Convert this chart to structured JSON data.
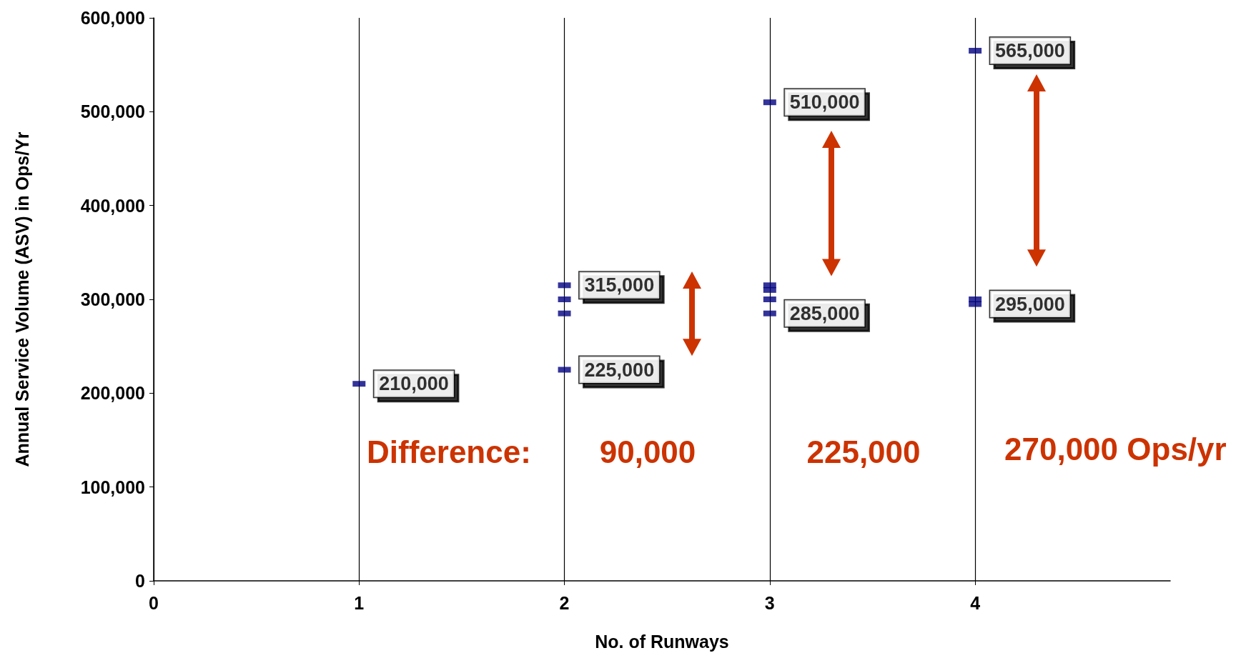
{
  "chart_data": {
    "type": "scatter",
    "xlabel": "No. of Runways",
    "ylabel": "Annual Service Volume (ASV) in Ops/Yr",
    "x": [
      1,
      2,
      2,
      2,
      2,
      3,
      3,
      3,
      3,
      3,
      4,
      4,
      4
    ],
    "values": [
      210000,
      315000,
      300000,
      285000,
      225000,
      510000,
      315000,
      310000,
      300000,
      285000,
      565000,
      300000,
      295000
    ],
    "value_labels": [
      "210,000",
      "315,000",
      null,
      null,
      "225,000",
      "510,000",
      null,
      null,
      null,
      "285,000",
      "565,000",
      null,
      "295,000"
    ],
    "color": "#000080",
    "marker": "square",
    "xlim": [
      0,
      4.95
    ],
    "xticks": [
      0,
      1,
      2,
      3,
      4
    ],
    "ylim": [
      0,
      600000
    ],
    "yticks": [
      0,
      {
        "value": 100000,
        "label": "100,000"
      },
      {
        "value": 200000,
        "label": "200,000"
      },
      {
        "value": 300000,
        "label": "300,000"
      },
      {
        "value": 400000,
        "label": "400,000"
      },
      {
        "value": 500000,
        "label": "500,000"
      },
      {
        "value": 600000,
        "label": "600,000"
      }
    ],
    "grid": "x",
    "annotations": [
      "Difference:",
      "90,000",
      "225,000",
      "270,000 Ops/yr"
    ]
  }
}
